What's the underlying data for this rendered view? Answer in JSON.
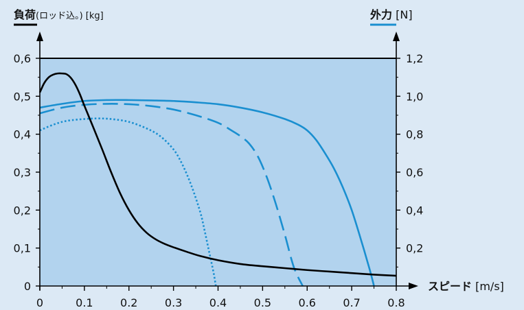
{
  "chart_data": {
    "type": "line",
    "left_axis_title": {
      "bold": "負荷",
      "rest": "(ロッド込。) [kg]"
    },
    "right_axis_title": {
      "bold": "外力",
      "rest": " [N]"
    },
    "x_axis_title": {
      "bold": "スピード",
      "rest": " [m/s]"
    },
    "x_ticks": [
      "0",
      "0.1",
      "0.2",
      "0.3",
      "0.4",
      "0.5",
      "0.6",
      "0.7",
      "0.8"
    ],
    "left_y_ticks": [
      "0",
      "0,1",
      "0,2",
      "0,3",
      "0,4",
      "0,5",
      "0,6"
    ],
    "right_y_ticks": [
      "0,2",
      "0,4",
      "0,6",
      "0,8",
      "1,0",
      "1,2"
    ],
    "xlim": [
      0,
      0.8
    ],
    "left_ylim": [
      0,
      0.6
    ],
    "right_ylim": [
      0,
      1.2
    ],
    "colors": {
      "plot_bg": "#b2d3ee",
      "page_bg": "#dce9f5",
      "load": "#000000",
      "force": "#1a8fd0"
    },
    "series": [
      {
        "axis": "left",
        "style": "solid-black",
        "x": [
          0,
          0.01,
          0.02,
          0.03,
          0.04,
          0.05,
          0.06,
          0.07,
          0.08,
          0.09,
          0.1,
          0.12,
          0.14,
          0.16,
          0.18,
          0.2,
          0.22,
          0.24,
          0.26,
          0.28,
          0.3,
          0.33,
          0.36,
          0.4,
          0.45,
          0.5,
          0.55,
          0.6,
          0.65,
          0.7,
          0.75,
          0.8
        ],
        "y": [
          0.51,
          0.535,
          0.55,
          0.557,
          0.56,
          0.56,
          0.558,
          0.548,
          0.53,
          0.505,
          0.475,
          0.418,
          0.36,
          0.3,
          0.245,
          0.2,
          0.165,
          0.14,
          0.123,
          0.111,
          0.102,
          0.09,
          0.079,
          0.068,
          0.058,
          0.052,
          0.047,
          0.042,
          0.038,
          0.034,
          0.03,
          0.027
        ]
      },
      {
        "axis": "right",
        "style": "solid-blue",
        "x": [
          0,
          0.05,
          0.1,
          0.15,
          0.2,
          0.25,
          0.3,
          0.35,
          0.4,
          0.45,
          0.5,
          0.55,
          0.58,
          0.6,
          0.62,
          0.64,
          0.66,
          0.68,
          0.7,
          0.72,
          0.74,
          0.75
        ],
        "y": [
          0.94,
          0.96,
          0.975,
          0.98,
          0.98,
          0.978,
          0.975,
          0.968,
          0.958,
          0.94,
          0.915,
          0.88,
          0.85,
          0.82,
          0.77,
          0.7,
          0.62,
          0.52,
          0.4,
          0.25,
          0.09,
          0
        ]
      },
      {
        "axis": "right",
        "style": "dashed-blue",
        "x": [
          0,
          0.05,
          0.1,
          0.15,
          0.2,
          0.25,
          0.3,
          0.35,
          0.4,
          0.43,
          0.45,
          0.47,
          0.49,
          0.51,
          0.53,
          0.55,
          0.57,
          0.59
        ],
        "y": [
          0.91,
          0.94,
          0.955,
          0.96,
          0.958,
          0.948,
          0.93,
          0.9,
          0.86,
          0.82,
          0.79,
          0.75,
          0.68,
          0.57,
          0.43,
          0.27,
          0.1,
          0
        ]
      },
      {
        "axis": "right",
        "style": "dotted-blue",
        "x": [
          0,
          0.03,
          0.06,
          0.1,
          0.13,
          0.16,
          0.2,
          0.24,
          0.27,
          0.3,
          0.32,
          0.34,
          0.36,
          0.37,
          0.38,
          0.39,
          0.395
        ],
        "y": [
          0.82,
          0.85,
          0.87,
          0.88,
          0.883,
          0.88,
          0.865,
          0.83,
          0.79,
          0.72,
          0.64,
          0.53,
          0.39,
          0.29,
          0.18,
          0.07,
          0
        ]
      }
    ]
  }
}
